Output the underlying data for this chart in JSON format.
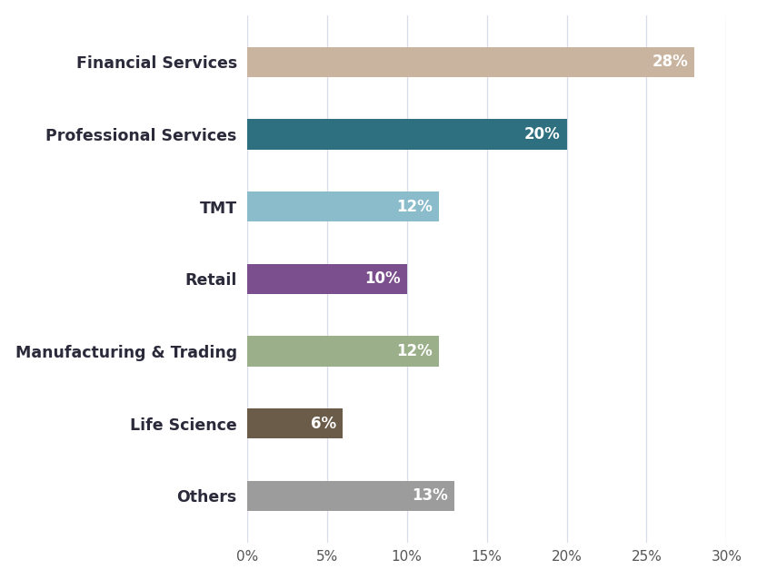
{
  "categories": [
    "Financial Services",
    "Professional Services",
    "TMT",
    "Retail",
    "Manufacturing & Trading",
    "Life Science",
    "Others"
  ],
  "values": [
    28,
    20,
    12,
    10,
    12,
    6,
    13
  ],
  "bar_colors": [
    "#C9B4A0",
    "#2E7080",
    "#8BBCCC",
    "#7B4F8E",
    "#9BB08A",
    "#6B5C4A",
    "#9C9C9C"
  ],
  "label_color": "#FFFFFF",
  "xlim": [
    0,
    30
  ],
  "xticks": [
    0,
    5,
    10,
    15,
    20,
    25,
    30
  ],
  "xtick_labels": [
    "0%",
    "5%",
    "10%",
    "15%",
    "20%",
    "25%",
    "30%"
  ],
  "grid_color": "#D8DCE8",
  "background_color": "#FFFFFF",
  "bar_height": 0.42,
  "label_fontsize": 12,
  "tick_fontsize": 11,
  "category_fontsize": 12.5,
  "figsize": [
    8.33,
    6.38
  ],
  "dpi": 100
}
